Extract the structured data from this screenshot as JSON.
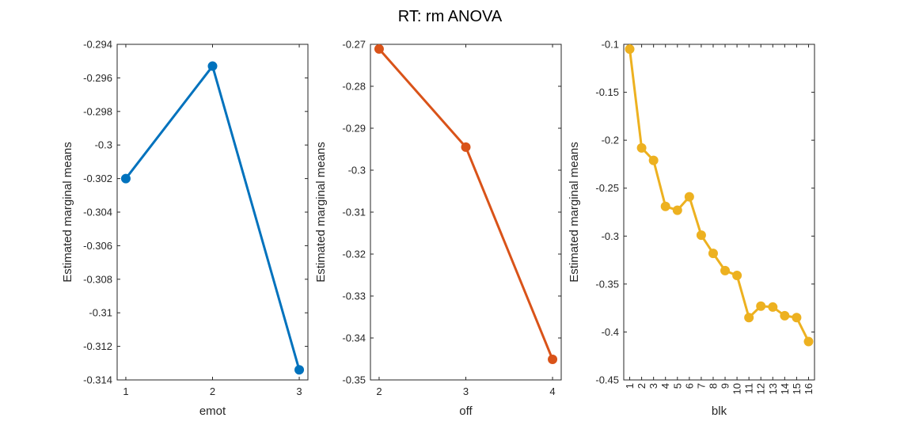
{
  "figure": {
    "title": "RT: rm ANOVA"
  },
  "chart_data": [
    {
      "type": "line",
      "xlabel": "emot",
      "ylabel": "Estimated marginal means",
      "x": [
        1,
        2,
        3
      ],
      "series": [
        {
          "values": [
            -0.302,
            -0.2953,
            -0.3134
          ],
          "color": "#0072BD"
        }
      ],
      "xlim": [
        0.9,
        3.1
      ],
      "ylim": [
        -0.314,
        -0.294
      ],
      "xticks": [
        1,
        2,
        3
      ],
      "xtick_labels": [
        "1",
        "2",
        "3"
      ],
      "yticks": [
        -0.294,
        -0.296,
        -0.298,
        -0.3,
        -0.302,
        -0.304,
        -0.306,
        -0.308,
        -0.31,
        -0.312,
        -0.314
      ],
      "ytick_labels": [
        "-0.294",
        "-0.296",
        "-0.298",
        "-0.3",
        "-0.302",
        "-0.304",
        "-0.306",
        "-0.308",
        "-0.31",
        "-0.312",
        "-0.314"
      ],
      "grid": false
    },
    {
      "type": "line",
      "xlabel": "off",
      "ylabel": "Estimated marginal means",
      "x": [
        2,
        3,
        4
      ],
      "series": [
        {
          "values": [
            -0.2711,
            -0.2945,
            -0.3451
          ],
          "color": "#D95319"
        }
      ],
      "xlim": [
        1.9,
        4.1
      ],
      "ylim": [
        -0.35,
        -0.27
      ],
      "xticks": [
        2,
        3,
        4
      ],
      "xtick_labels": [
        "2",
        "3",
        "4"
      ],
      "yticks": [
        -0.27,
        -0.28,
        -0.29,
        -0.3,
        -0.31,
        -0.32,
        -0.33,
        -0.34,
        -0.35
      ],
      "ytick_labels": [
        "-0.27",
        "-0.28",
        "-0.29",
        "-0.3",
        "-0.31",
        "-0.32",
        "-0.33",
        "-0.34",
        "-0.35"
      ],
      "grid": false
    },
    {
      "type": "line",
      "xlabel": "blk",
      "ylabel": "Estimated marginal means",
      "x": [
        1,
        2,
        3,
        4,
        5,
        6,
        7,
        8,
        9,
        10,
        11,
        12,
        13,
        14,
        15,
        16
      ],
      "series": [
        {
          "values": [
            -0.105,
            -0.208,
            -0.221,
            -0.269,
            -0.273,
            -0.259,
            -0.299,
            -0.318,
            -0.336,
            -0.341,
            -0.385,
            -0.373,
            -0.374,
            -0.383,
            -0.385,
            -0.41
          ],
          "color": "#EDB120"
        }
      ],
      "xlim": [
        0.5,
        16.5
      ],
      "ylim": [
        -0.45,
        -0.1
      ],
      "xticks": [
        1,
        2,
        3,
        4,
        5,
        6,
        7,
        8,
        9,
        10,
        11,
        12,
        13,
        14,
        15,
        16
      ],
      "xtick_labels": [
        "1",
        "2",
        "3",
        "4",
        "5",
        "6",
        "7",
        "8",
        "9",
        "10",
        "11",
        "12",
        "13",
        "14",
        "15",
        "16"
      ],
      "yticks": [
        -0.1,
        -0.15,
        -0.2,
        -0.25,
        -0.3,
        -0.35,
        -0.4,
        -0.45
      ],
      "ytick_labels": [
        "-0.1",
        "-0.15",
        "-0.2",
        "-0.25",
        "-0.3",
        "-0.35",
        "-0.4",
        "-0.45"
      ],
      "grid": false
    }
  ]
}
